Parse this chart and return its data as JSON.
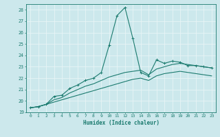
{
  "xlabel": "Humidex (Indice chaleur)",
  "ylabel": "",
  "xlim": [
    -0.5,
    23.5
  ],
  "ylim": [
    19,
    28.5
  ],
  "yticks": [
    19,
    20,
    21,
    22,
    23,
    24,
    25,
    26,
    27,
    28
  ],
  "xticks": [
    0,
    1,
    2,
    3,
    4,
    5,
    6,
    7,
    8,
    9,
    10,
    11,
    12,
    13,
    14,
    15,
    16,
    17,
    18,
    19,
    20,
    21,
    22,
    23
  ],
  "bg_color": "#cce8ec",
  "grid_color": "#e8f4f6",
  "line_color": "#1a7a6e",
  "series1_x": [
    0,
    1,
    2,
    3,
    4,
    5,
    6,
    7,
    8,
    9,
    10,
    11,
    12,
    13,
    14,
    15,
    16,
    17,
    18,
    19,
    20,
    21,
    22,
    23
  ],
  "series1_y": [
    19.4,
    19.5,
    19.7,
    20.4,
    20.5,
    21.1,
    21.4,
    21.8,
    22.0,
    22.5,
    24.9,
    27.5,
    28.2,
    25.5,
    22.5,
    22.2,
    23.6,
    23.3,
    23.5,
    23.4,
    23.1,
    23.1,
    23.0,
    22.9
  ],
  "series2_x": [
    0,
    1,
    2,
    3,
    4,
    5,
    6,
    7,
    8,
    9,
    10,
    11,
    12,
    13,
    14,
    15,
    16,
    17,
    18,
    19,
    20,
    21,
    22,
    23
  ],
  "series2_y": [
    19.4,
    19.5,
    19.7,
    20.1,
    20.3,
    20.7,
    21.0,
    21.3,
    21.5,
    21.8,
    22.1,
    22.3,
    22.5,
    22.6,
    22.7,
    22.3,
    22.8,
    23.0,
    23.2,
    23.3,
    23.2,
    23.1,
    23.0,
    22.9
  ],
  "series3_x": [
    0,
    1,
    2,
    3,
    4,
    5,
    6,
    7,
    8,
    9,
    10,
    11,
    12,
    13,
    14,
    15,
    16,
    17,
    18,
    19,
    20,
    21,
    22,
    23
  ],
  "series3_y": [
    19.4,
    19.5,
    19.7,
    19.9,
    20.1,
    20.3,
    20.5,
    20.7,
    20.9,
    21.1,
    21.3,
    21.5,
    21.7,
    21.9,
    22.0,
    21.8,
    22.2,
    22.4,
    22.5,
    22.6,
    22.5,
    22.4,
    22.3,
    22.2
  ]
}
